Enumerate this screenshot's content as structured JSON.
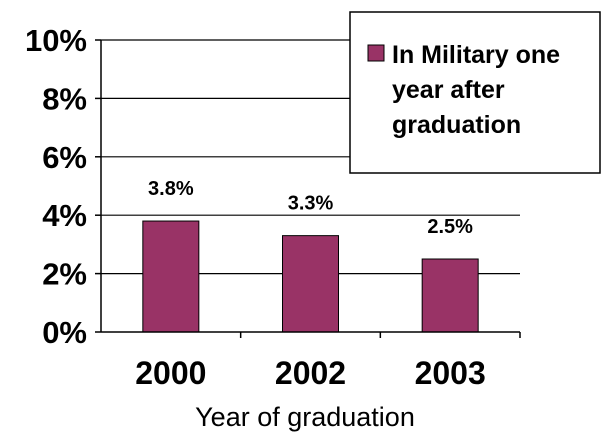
{
  "chart_data": {
    "type": "bar",
    "categories": [
      "2000",
      "2002",
      "2003"
    ],
    "series": [
      {
        "name": "In Military one year after graduation",
        "values": [
          3.8,
          3.3,
          2.5
        ],
        "data_labels": [
          "3.8%",
          "3.3%",
          "2.5%"
        ],
        "color": "#993366"
      }
    ],
    "title": "",
    "xlabel": "Year of graduation",
    "ylabel": "",
    "ylim": [
      0,
      10
    ],
    "yticks": [
      0,
      2,
      4,
      6,
      8,
      10
    ],
    "ytick_labels": [
      "0%",
      "2%",
      "4%",
      "6%",
      "8%",
      "10%"
    ],
    "grid": true,
    "legend": {
      "position": "top-right",
      "lines": [
        "In Military one",
        "year after",
        "graduation"
      ]
    }
  }
}
